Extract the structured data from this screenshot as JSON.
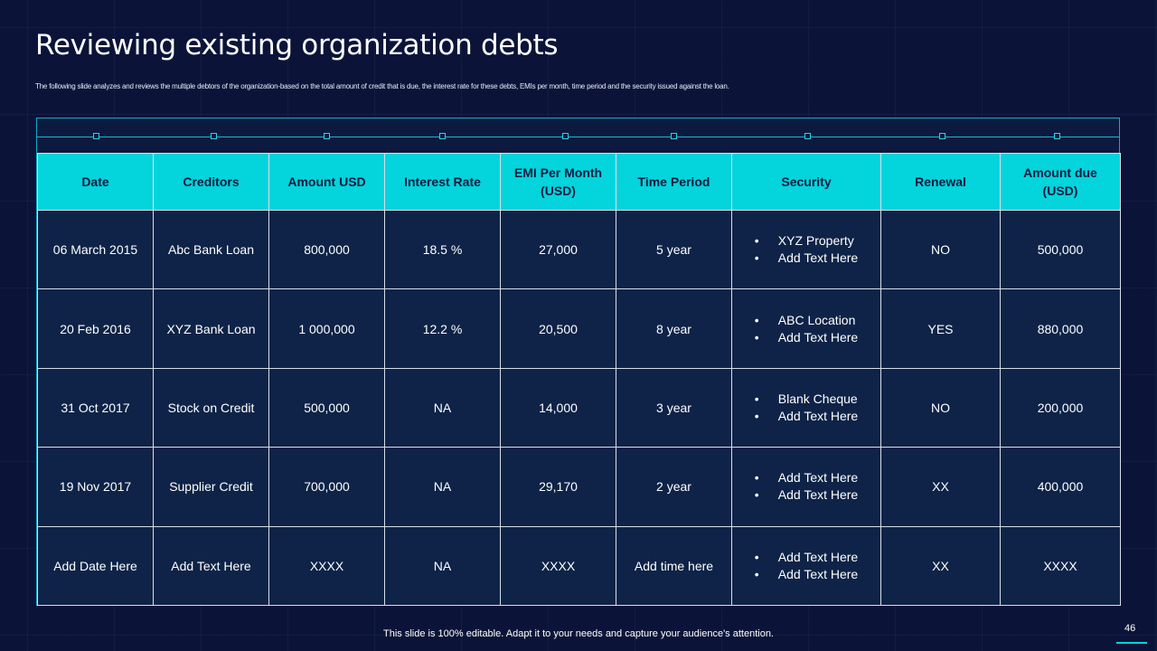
{
  "title": "Reviewing existing organization debts",
  "subtitle": "The following slide analyzes and reviews the multiple debtors of the organization-based on the total amount of credit that is due, the interest rate for these debts, EMIs per month, time period and the security issued against the loan.",
  "colors": {
    "background": "#0b1438",
    "header_accent": "#04d4dc",
    "cell_background": "#0e2347",
    "connector_line": "#1fb6cf"
  },
  "table": {
    "headers": [
      "Date",
      "Creditors",
      "Amount USD",
      "Interest Rate",
      "EMI Per Month (USD)",
      "Time Period",
      "Security",
      "Renewal",
      "Amount due (USD)"
    ],
    "rows": [
      {
        "date": "06 March 2015",
        "creditor": "Abc Bank Loan",
        "amount": "800,000",
        "interest": "18.5 %",
        "emi": "27,000",
        "period": "5 year",
        "security": [
          "XYZ Property",
          "Add Text Here"
        ],
        "renewal": "NO",
        "due": "500,000"
      },
      {
        "date": "20 Feb 2016",
        "creditor": "XYZ Bank Loan",
        "amount": "1 000,000",
        "interest": "12.2 %",
        "emi": "20,500",
        "period": "8 year",
        "security": [
          "ABC Location",
          "Add Text Here"
        ],
        "renewal": "YES",
        "due": "880,000"
      },
      {
        "date": "31 Oct 2017",
        "creditor": "Stock on Credit",
        "amount": "500,000",
        "interest": "NA",
        "emi": "14,000",
        "period": "3 year",
        "security": [
          "Blank Cheque",
          "Add Text Here"
        ],
        "renewal": "NO",
        "due": "200,000"
      },
      {
        "date": "19 Nov 2017",
        "creditor": "Supplier Credit",
        "amount": "700,000",
        "interest": "NA",
        "emi": "29,170",
        "period": "2 year",
        "security": [
          "Add Text Here",
          "Add Text Here"
        ],
        "renewal": "XX",
        "due": "400,000"
      },
      {
        "date": "Add Date Here",
        "creditor": "Add Text Here",
        "amount": "XXXX",
        "interest": "NA",
        "emi": "XXXX",
        "period": "Add time here",
        "security": [
          "Add Text Here",
          "Add Text Here"
        ],
        "renewal": "XX",
        "due": "XXXX"
      }
    ]
  },
  "footer": "This slide is 100% editable. Adapt it to your needs and capture your audience's attention.",
  "page_number": "46"
}
